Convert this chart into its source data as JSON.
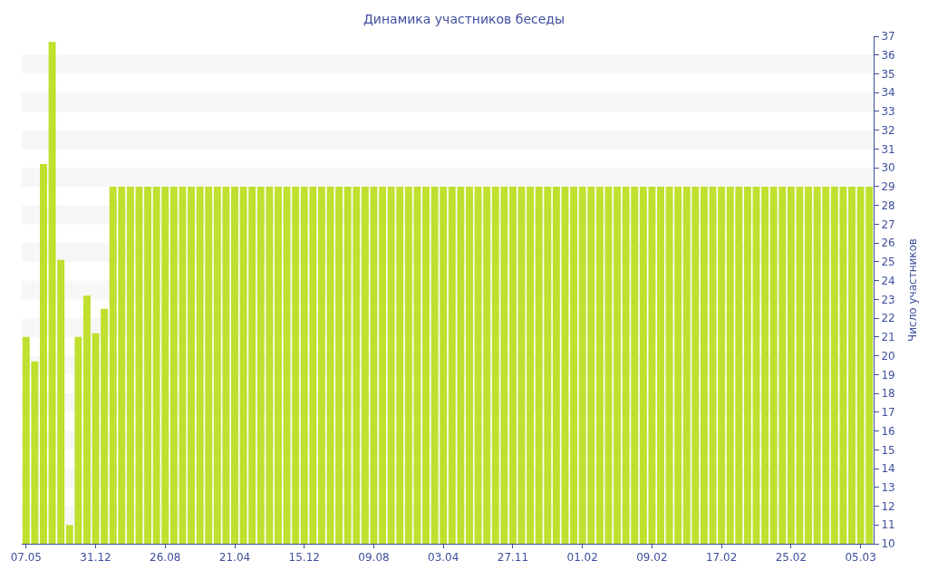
{
  "chart_data": {
    "type": "bar",
    "title": "Динамика участников беседы",
    "ylabel": "Число участников",
    "categories": [
      "07.05",
      null,
      null,
      null,
      null,
      null,
      null,
      null,
      "31.12",
      null,
      null,
      null,
      null,
      null,
      null,
      null,
      "26.08",
      null,
      null,
      null,
      null,
      null,
      null,
      null,
      "21.04",
      null,
      null,
      null,
      null,
      null,
      null,
      null,
      "15.12",
      null,
      null,
      null,
      null,
      null,
      null,
      null,
      "09.08",
      null,
      null,
      null,
      null,
      null,
      null,
      null,
      "03.04",
      null,
      null,
      null,
      null,
      null,
      null,
      null,
      "27.11",
      null,
      null,
      null,
      null,
      null,
      null,
      null,
      "01.02",
      null,
      null,
      null,
      null,
      null,
      null,
      null,
      "09.02",
      null,
      null,
      null,
      null,
      null,
      null,
      null,
      "17.02",
      null,
      null,
      null,
      null,
      null,
      null,
      null,
      "25.02",
      null,
      null,
      null,
      null,
      null,
      null,
      null,
      "05.03",
      null
    ],
    "values": [
      21,
      19.7,
      30.2,
      36.7,
      25.1,
      11,
      21,
      23.2,
      21.2,
      22.5,
      29,
      29,
      29,
      29,
      29,
      29,
      29,
      29,
      29,
      29,
      29,
      29,
      29,
      29,
      29,
      29,
      29,
      29,
      29,
      29,
      29,
      29,
      29,
      29,
      29,
      29,
      29,
      29,
      29,
      29,
      29,
      29,
      29,
      29,
      29,
      29,
      29,
      29,
      29,
      29,
      29,
      29,
      29,
      29,
      29,
      29,
      29,
      29,
      29,
      29,
      29,
      29,
      29,
      29,
      29,
      29,
      29,
      29,
      29,
      29,
      29,
      29,
      29,
      29,
      29,
      29,
      29,
      29,
      29,
      29,
      29,
      29,
      29,
      29,
      29,
      29,
      29,
      29,
      29,
      29,
      29,
      29,
      29,
      29,
      29,
      29,
      29,
      29
    ],
    "color": "#bfe02f",
    "ylim": [
      10,
      37
    ],
    "yticks": [
      10,
      11,
      12,
      13,
      14,
      15,
      16,
      17,
      18,
      19,
      20,
      21,
      22,
      23,
      24,
      25,
      26,
      27,
      28,
      29,
      30,
      31,
      32,
      33,
      34,
      35,
      36,
      37
    ],
    "bands": [
      {
        "axis": "y",
        "from": 11,
        "to": 12,
        "color": "#f7f7f7"
      },
      {
        "axis": "y",
        "from": 13,
        "to": 14,
        "color": "#f7f7f7"
      },
      {
        "axis": "y",
        "from": 15,
        "to": 16,
        "color": "#f7f7f7"
      },
      {
        "axis": "y",
        "from": 17,
        "to": 18,
        "color": "#f7f7f7"
      },
      {
        "axis": "y",
        "from": 19,
        "to": 20,
        "color": "#f7f7f7"
      },
      {
        "axis": "y",
        "from": 21,
        "to": 22,
        "color": "#f7f7f7"
      },
      {
        "axis": "y",
        "from": 23,
        "to": 24,
        "color": "#f7f7f7"
      },
      {
        "axis": "y",
        "from": 25,
        "to": 26,
        "color": "#f7f7f7"
      },
      {
        "axis": "y",
        "from": 27,
        "to": 28,
        "color": "#f7f7f7"
      },
      {
        "axis": "y",
        "from": 29,
        "to": 30,
        "color": "#f7f7f7"
      },
      {
        "axis": "y",
        "from": 31,
        "to": 32,
        "color": "#f7f7f7"
      },
      {
        "axis": "y",
        "from": 33,
        "to": 34,
        "color": "#f7f7f7"
      },
      {
        "axis": "y",
        "from": 35,
        "to": 36,
        "color": "#f7f7f7"
      }
    ],
    "legend": false
  }
}
